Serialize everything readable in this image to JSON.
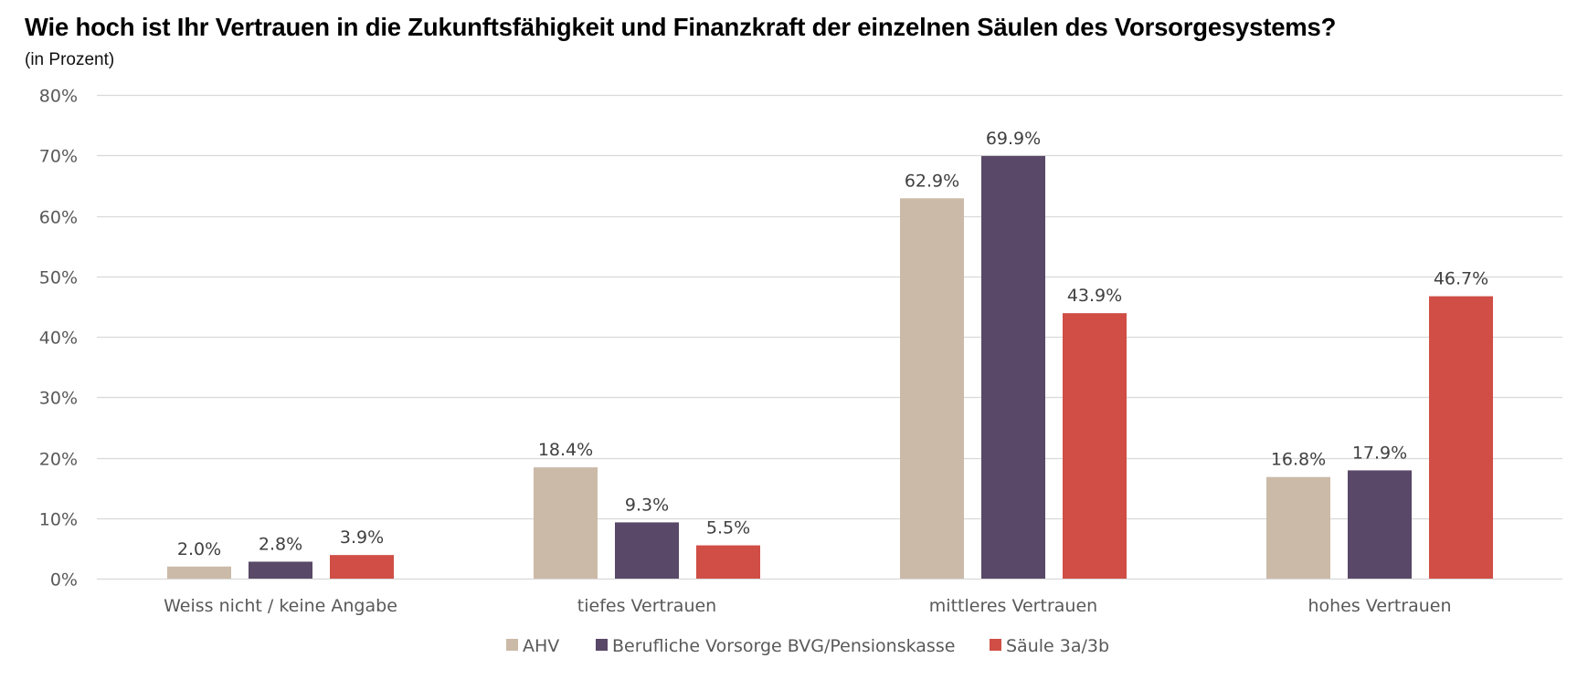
{
  "chart_data": {
    "type": "bar",
    "title": "Wie hoch ist Ihr Vertrauen in die Zukunftsfähigkeit und Finanzkraft der einzelnen Säulen des Vorsorgesystems?",
    "subtitle": "(in Prozent)",
    "xlabel": "",
    "ylabel": "",
    "ylim": [
      0,
      80
    ],
    "yticks": [
      0,
      10,
      20,
      30,
      40,
      50,
      60,
      70,
      80
    ],
    "ytick_format": "{v}%",
    "grid": true,
    "legend_position": "bottom",
    "categories": [
      "Weiss nicht / keine Angabe",
      "tiefes Vertrauen",
      "mittleres Vertrauen",
      "hohes Vertrauen"
    ],
    "series": [
      {
        "name": "AHV",
        "color": "#CBBAA8",
        "values": [
          2.0,
          18.4,
          62.9,
          16.8
        ]
      },
      {
        "name": "Berufliche Vorsorge BVG/Pensionskasse",
        "color": "#594867",
        "values": [
          2.8,
          9.3,
          69.9,
          17.9
        ]
      },
      {
        "name": "Säule 3a/3b",
        "color": "#D04E45",
        "values": [
          3.9,
          5.5,
          43.9,
          46.7
        ]
      }
    ],
    "data_label_format": "{v}%"
  }
}
